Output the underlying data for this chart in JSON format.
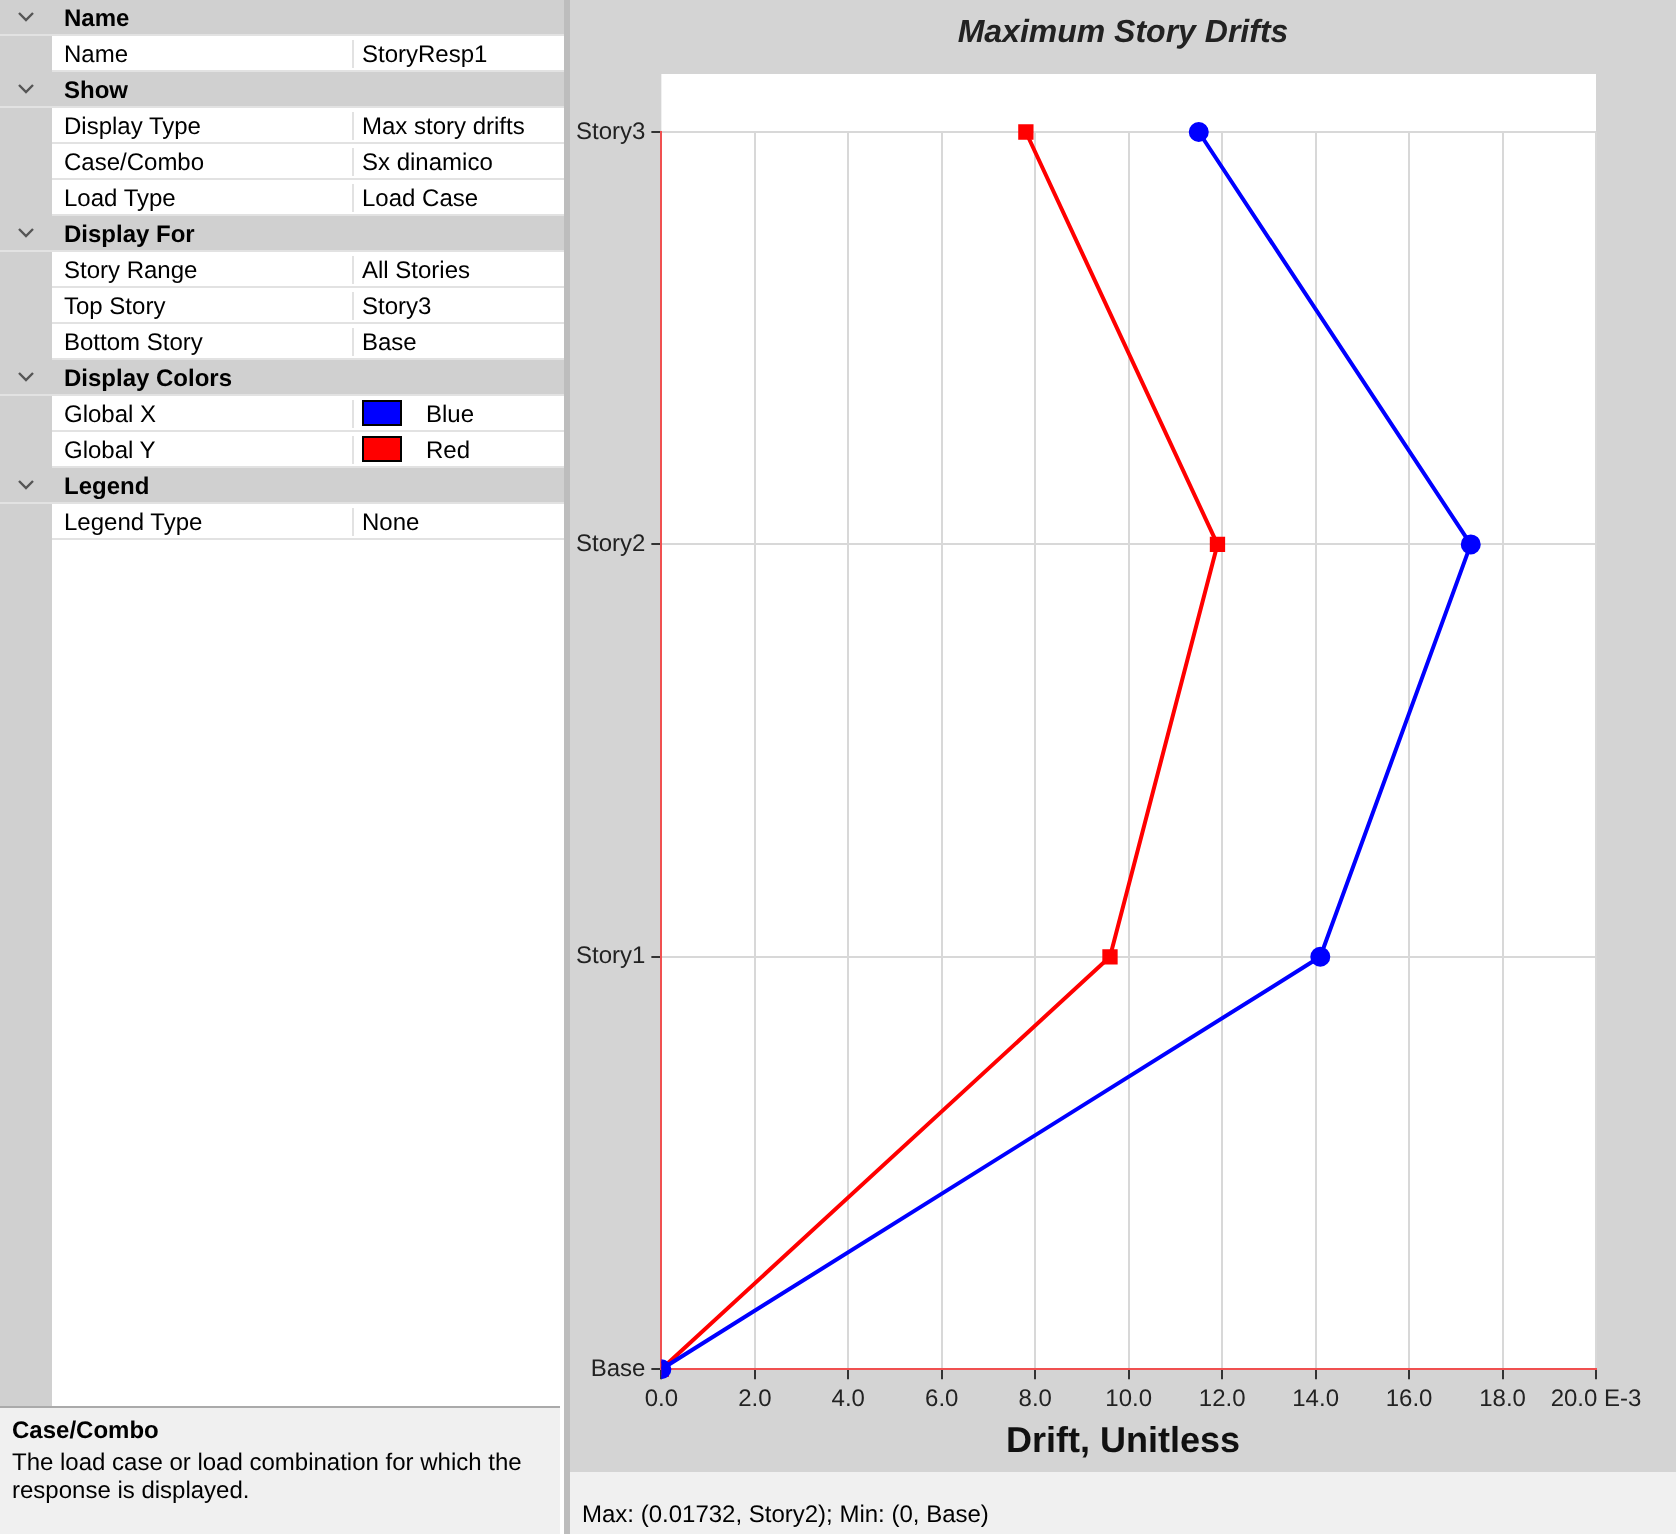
{
  "chart_data": [
    {
      "type": "other",
      "categories": [
        "Name",
        "Name",
        "Show",
        "Display Type",
        "Case/Combo",
        "Load Type",
        "Display For",
        "Story Range",
        "Top Story",
        "Bottom Story",
        "Display Colors",
        "Global X",
        "Global Y",
        "Legend",
        "Legend Type"
      ],
      "value_labels": [
        null,
        "StoryResp1",
        null,
        "Max story drifts",
        "Sx dinamico",
        "Load Case",
        null,
        "All Stories",
        "Story3",
        "Base",
        null,
        "Blue",
        "Red",
        null,
        "None"
      ],
      "colors": [
        null,
        null,
        null,
        null,
        null,
        null,
        null,
        null,
        null,
        null,
        null,
        "#0000ff",
        "#ff0000",
        null,
        null
      ],
      "annotations": [
        "Case/Combo",
        "The load case or load combination for which the response is displayed."
      ]
    },
    {
      "type": "line",
      "title": "Maximum Story Drifts",
      "xlabel": "Drift, Unitless",
      "orientation": "horizontal",
      "categories": [
        "Story3",
        "Story2",
        "Story1",
        "Base"
      ],
      "series": [
        {
          "color": "#0000ff",
          "marker": "circle",
          "values": [
            11.5,
            17.32,
            14.1,
            0
          ]
        },
        {
          "color": "#ff0000",
          "marker": "square",
          "values": [
            7.8,
            11.9,
            9.6,
            0
          ]
        }
      ],
      "xlim": [
        0,
        20
      ],
      "xticks": [
        {
          "value": 0,
          "label": "0.0"
        },
        {
          "value": 2,
          "label": "2.0"
        },
        {
          "value": 4,
          "label": "4.0"
        },
        {
          "value": 6,
          "label": "6.0"
        },
        {
          "value": 8,
          "label": "8.0"
        },
        {
          "value": 10,
          "label": "10.0"
        },
        {
          "value": 12,
          "label": "12.0"
        },
        {
          "value": 14,
          "label": "14.0"
        },
        {
          "value": 16,
          "label": "16.0"
        },
        {
          "value": 18,
          "label": "18.0"
        },
        {
          "value": 20,
          "label": "20.0 E-3"
        }
      ],
      "grid": true,
      "legend": false,
      "annotations": [
        "Max: (0.01732, Story2);  Min: (0, Base)"
      ]
    }
  ]
}
